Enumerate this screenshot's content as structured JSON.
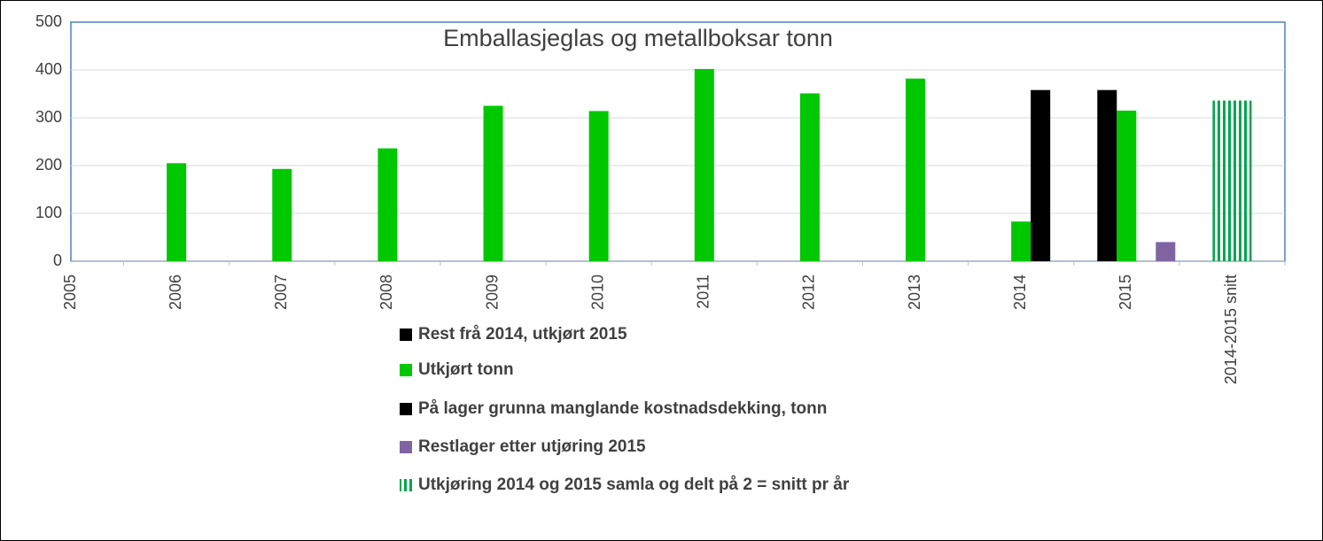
{
  "chart_data": {
    "type": "bar",
    "title": "Emballasjeglas og metallboksar tonn",
    "categories": [
      "2005",
      "2006",
      "2007",
      "2008",
      "2009",
      "2010",
      "2011",
      "2012",
      "2013",
      "2014",
      "2015",
      "2014-2015 snitt"
    ],
    "series": [
      {
        "name": "Rest frå 2014, utkjørt 2015",
        "color": "#000000",
        "values": [
          null,
          null,
          null,
          null,
          null,
          null,
          null,
          null,
          null,
          null,
          358,
          null
        ]
      },
      {
        "name": "Utkjørt tonn",
        "color": "#00c800",
        "values": [
          null,
          205,
          193,
          236,
          325,
          314,
          402,
          351,
          382,
          83,
          315,
          null
        ]
      },
      {
        "name": "På lager grunna manglande kostnadsdekking, tonn",
        "color": "#000000",
        "values": [
          null,
          null,
          null,
          null,
          null,
          null,
          null,
          null,
          null,
          358,
          null,
          null
        ]
      },
      {
        "name": "Restlager etter utjøring 2015",
        "color": "#8064a2",
        "values": [
          null,
          null,
          null,
          null,
          null,
          null,
          null,
          null,
          null,
          null,
          40,
          null
        ]
      },
      {
        "name": "Utkjøring 2014 og 2015 samla og delt på 2 = snitt pr år",
        "color": "#00a550",
        "values": [
          null,
          null,
          null,
          null,
          null,
          null,
          null,
          null,
          null,
          null,
          null,
          336
        ]
      }
    ],
    "ylim": [
      0,
      500
    ],
    "yticks": [
      0,
      100,
      200,
      300,
      400,
      500
    ],
    "grid": true
  }
}
